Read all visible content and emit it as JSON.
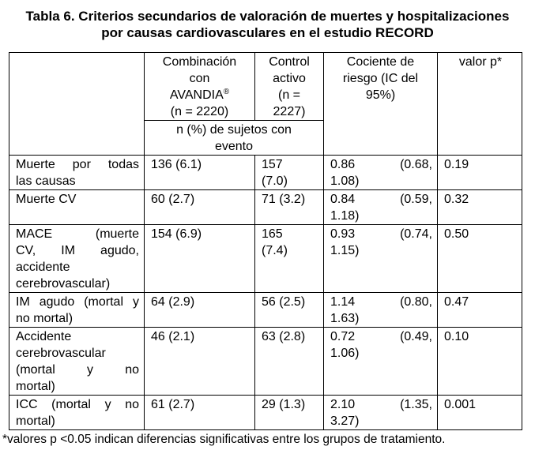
{
  "title": {
    "line1": "Tabla 6. Criterios secundarios de valoración de muertes y hospitalizaciones",
    "line2": "por causas cardiovasculares en el estudio RECORD"
  },
  "table": {
    "header": {
      "col1": "",
      "col2_l1": "Combinación",
      "col2_l2": "con",
      "col2_l3": "AVANDIA",
      "col2_sup": "®",
      "col2_l4": "(n = 2220)",
      "col3_l1": "Control",
      "col3_l2": "activo",
      "col3_l3": "(n =",
      "col3_l4": "2227)",
      "col4_l1": "Cociente de",
      "col4_l2": "riesgo (IC del",
      "col4_l3": "95%)",
      "col5": "valor p*",
      "subheader_l1": "n (%) de sujetos con",
      "subheader_l2": "evento"
    },
    "rows": [
      {
        "label_lines": [
          "Muerte por todas",
          "las causas"
        ],
        "avandia": "136 (6.1)",
        "control_lines": [
          "157",
          "(7.0)"
        ],
        "hr_l1a": "0.86",
        "hr_l1b": "(0.68,",
        "hr_l2": "1.08)",
        "p": "0.19"
      },
      {
        "label_lines": [
          "Muerte CV"
        ],
        "avandia": "60 (2.7)",
        "control_lines": [
          "71 (3.2)"
        ],
        "hr_l1a": "0.84",
        "hr_l1b": "(0.59,",
        "hr_l2": "1.18)",
        "p": "0.32"
      },
      {
        "label_lines": [
          "MACE (muerte",
          "CV, IM agudo,",
          "accidente",
          "cerebrovascular)"
        ],
        "avandia": "154 (6.9)",
        "control_lines": [
          "165",
          "(7.4)"
        ],
        "hr_l1a": "0.93",
        "hr_l1b": "(0.74,",
        "hr_l2": "1.15)",
        "p": "0.50"
      },
      {
        "label_lines": [
          "IM agudo (mortal y",
          "no mortal)"
        ],
        "avandia": "64 (2.9)",
        "control_lines": [
          "56 (2.5)"
        ],
        "hr_l1a": "1.14",
        "hr_l1b": "(0.80,",
        "hr_l2": "1.63)",
        "p": "0.47"
      },
      {
        "label_lines": [
          "Accidente",
          "cerebrovascular",
          "(mortal y no",
          "mortal)"
        ],
        "avandia": "46 (2.1)",
        "control_lines": [
          "63 (2.8)"
        ],
        "hr_l1a": "0.72",
        "hr_l1b": "(0.49,",
        "hr_l2": "1.06)",
        "p": "0.10"
      },
      {
        "label_lines": [
          "ICC (mortal y no",
          "mortal)"
        ],
        "avandia": "61 (2.7)",
        "control_lines": [
          "29 (1.3)"
        ],
        "hr_l1a": "2.10",
        "hr_l1b": "(1.35,",
        "hr_l2": "3.27)",
        "p": "0.001"
      }
    ]
  },
  "footnote": "*valores p <0.05 indican diferencias significativas entre los grupos de tratamiento."
}
